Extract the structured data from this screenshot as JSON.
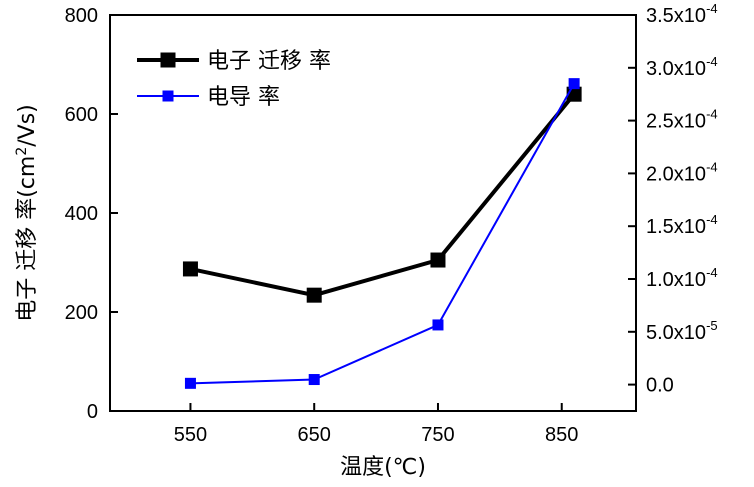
{
  "chart_data": {
    "type": "line",
    "x": [
      550,
      650,
      750,
      860
    ],
    "x_ticks": [
      "550",
      "650",
      "750",
      "850"
    ],
    "x_tick_values": [
      550,
      650,
      750,
      850
    ],
    "xlim": [
      485,
      910
    ],
    "xlabel": "温度(℃)",
    "ylabel_left": "电子 迁移  率(cm²/Vs)",
    "ylim_left": [
      0,
      800
    ],
    "yticks_left": [
      0,
      200,
      400,
      600,
      800
    ],
    "ylim_right": [
      -2.5e-05,
      0.00035
    ],
    "right_ticks": [
      {
        "value": 0.0,
        "mantissa": "0.0",
        "exp": ""
      },
      {
        "value": 5e-05,
        "mantissa": "5.0x10",
        "exp": "-5"
      },
      {
        "value": 0.0001,
        "mantissa": "1.0x10",
        "exp": "-4"
      },
      {
        "value": 0.00015,
        "mantissa": "1.5x10",
        "exp": "-4"
      },
      {
        "value": 0.0002,
        "mantissa": "2.0x10",
        "exp": "-4"
      },
      {
        "value": 0.00025,
        "mantissa": "2.5x10",
        "exp": "-4"
      },
      {
        "value": 0.0003,
        "mantissa": "3.0x10",
        "exp": "-4"
      },
      {
        "value": 0.00035,
        "mantissa": "3.5x10",
        "exp": "-4"
      }
    ],
    "series": [
      {
        "name": "电子 迁移  率",
        "axis": "left",
        "color": "#000000",
        "marker": "square",
        "values": [
          287,
          234,
          305,
          640
        ]
      },
      {
        "name": "电导 率",
        "axis": "right",
        "color": "#0000ff",
        "marker": "square",
        "values": [
          1.2e-06,
          4.8e-06,
          5.65e-05,
          0.000285
        ]
      }
    ],
    "legend_position": "top-left",
    "grid": false
  }
}
